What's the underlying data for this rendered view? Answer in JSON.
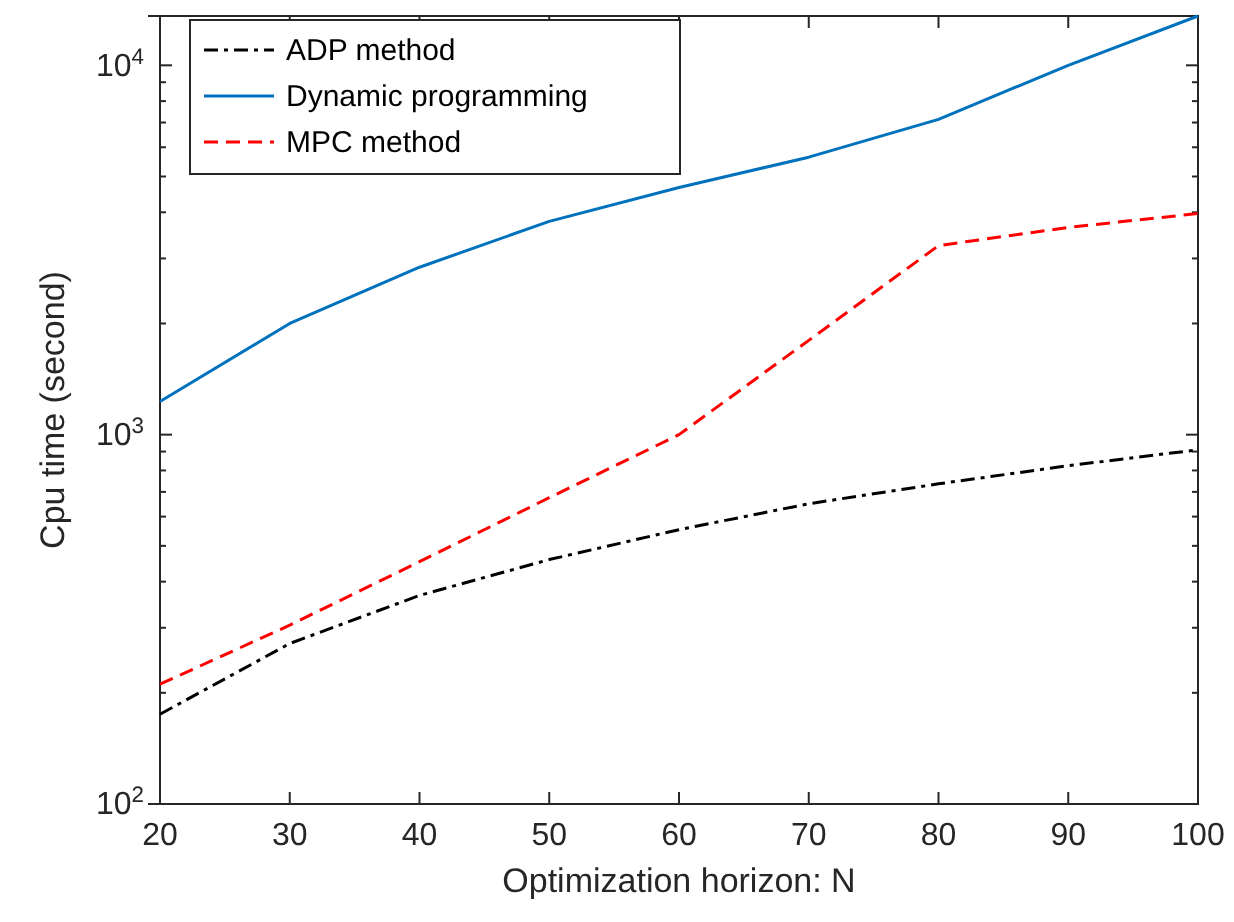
{
  "chart_data": {
    "type": "line",
    "xlabel": "Optimization horizon: N",
    "ylabel": "Cpu time (second)",
    "log": "y",
    "grid": false,
    "legend": "top left",
    "marker": "none",
    "x": [
      20,
      30,
      40,
      50,
      60,
      70,
      80,
      90,
      100
    ],
    "xlim": [
      20,
      100
    ],
    "xticks": [
      20,
      30,
      40,
      50,
      60,
      70,
      80,
      90,
      100
    ],
    "ylim": [
      100,
      13600
    ],
    "yticks": [
      {
        "value": 100,
        "label": "10$^{2}$"
      },
      {
        "value": 200,
        "label": null
      },
      {
        "value": 300,
        "label": null
      },
      {
        "value": 400,
        "label": null
      },
      {
        "value": 500,
        "label": null
      },
      {
        "value": 600,
        "label": null
      },
      {
        "value": 700,
        "label": null
      },
      {
        "value": 800,
        "label": null
      },
      {
        "value": 900,
        "label": null
      },
      {
        "value": 1000,
        "label": "10$^{3}$"
      },
      {
        "value": 2000,
        "label": null
      },
      {
        "value": 3000,
        "label": null
      },
      {
        "value": 4000,
        "label": null
      },
      {
        "value": 5000,
        "label": null
      },
      {
        "value": 6000,
        "label": null
      },
      {
        "value": 7000,
        "label": null
      },
      {
        "value": 8000,
        "label": null
      },
      {
        "value": 9000,
        "label": null
      },
      {
        "value": 10000,
        "label": "10$^{4}$"
      }
    ],
    "series": [
      {
        "name": "ADP method",
        "color": "#000000",
        "line_style": "dashdot",
        "values": [
          175,
          272,
          367,
          459,
          553,
          650,
          736,
          824,
          910
        ]
      },
      {
        "name": "Dynamic programming",
        "color": "#0072bd",
        "line_style": "solid",
        "values": [
          1230,
          2000,
          2840,
          3780,
          4670,
          5640,
          7140,
          10000,
          13600
        ]
      },
      {
        "name": "MPC method",
        "color": "#ff0000",
        "line_style": "dashed",
        "values": [
          211,
          305,
          453,
          675,
          1000,
          1800,
          3250,
          3640,
          3970
        ]
      }
    ]
  }
}
